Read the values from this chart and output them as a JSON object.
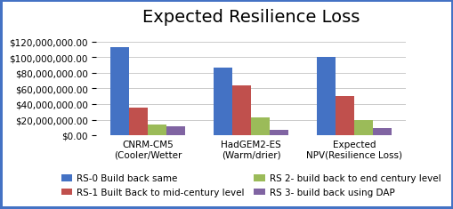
{
  "title": "Expected Resilience Loss",
  "categories": [
    "CNRM-CM5\n(Cooler/Wetter",
    "HadGEM2-ES\n(Warm/drier)",
    "Expected\nNPV(Resilience Loss)"
  ],
  "series": [
    {
      "label": "RS-0 Build back same",
      "color": "#4472C4",
      "values": [
        113000000,
        87000000,
        101000000
      ]
    },
    {
      "label": "RS-1 Built Back to mid-century level",
      "color": "#C0504D",
      "values": [
        35000000,
        64000000,
        50000000
      ]
    },
    {
      "label": "RS 2- build back to end century level",
      "color": "#9BBB59",
      "values": [
        14000000,
        23000000,
        19000000
      ]
    },
    {
      "label": "RS 3- build back using DAP",
      "color": "#8064A2",
      "values": [
        11000000,
        7000000,
        9000000
      ]
    }
  ],
  "ylim": [
    0,
    130000000
  ],
  "yticks": [
    0,
    20000000,
    40000000,
    60000000,
    80000000,
    100000000,
    120000000
  ],
  "background_color": "#FFFFFF",
  "border_color": "#4472C4",
  "title_fontsize": 14,
  "legend_fontsize": 7.5,
  "tick_fontsize": 7.5
}
